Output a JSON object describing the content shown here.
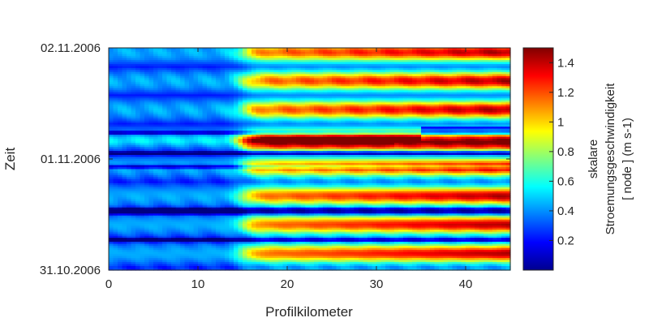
{
  "chart_data": {
    "type": "heatmap",
    "title": "",
    "xlabel": "Profilkilometer",
    "ylabel": "Zeit",
    "xlim": [
      0,
      45
    ],
    "ylim": [
      "31.10.2006",
      "02.11.2006"
    ],
    "x_ticks": [
      0,
      10,
      20,
      30,
      40
    ],
    "x_tick_labels": [
      "0",
      "10",
      "20",
      "30",
      "40"
    ],
    "y_ticks": [
      0,
      1,
      2
    ],
    "y_tick_labels": [
      "31.10.2006",
      "01.11.2006",
      "02.11.2006"
    ],
    "colormap": "jet",
    "colorbar": {
      "range": [
        0,
        1.5
      ],
      "ticks": [
        0.2,
        0.4,
        0.6,
        0.8,
        1,
        1.2,
        1.4
      ],
      "tick_labels": [
        "0.2",
        "0.4",
        "0.6",
        "0.8",
        "1",
        "1.2",
        "1.4"
      ],
      "label_lines": [
        "skalare",
        "Stroemungsgeschwindigkeit",
        "[ node ] (m s-1)"
      ]
    },
    "grid": false
  }
}
